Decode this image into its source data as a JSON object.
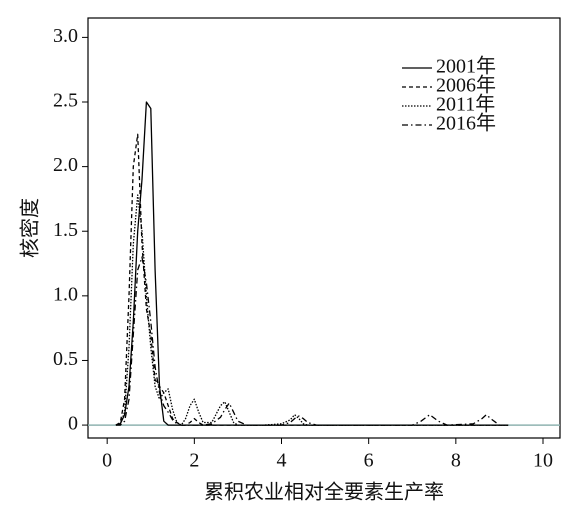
{
  "chart_data": {
    "type": "line",
    "x_label": "累积农业相对全要素生产率",
    "y_label": "核密度",
    "x": [
      0.2,
      0.3,
      0.4,
      0.5,
      0.6,
      0.7,
      0.8,
      0.9,
      1.0,
      1.1,
      1.2,
      1.3,
      1.4,
      1.5,
      1.6,
      1.7,
      1.8,
      1.9,
      2.0,
      2.1,
      2.2,
      2.4,
      2.6,
      2.7,
      2.8,
      2.9,
      3.0,
      3.2,
      3.6,
      4.0,
      4.2,
      4.3,
      4.4,
      4.5,
      4.6,
      4.8,
      5.2,
      6.0,
      7.0,
      7.2,
      7.4,
      7.6,
      7.8,
      8.4,
      8.6,
      8.7,
      8.8,
      9.0,
      9.2
    ],
    "series": [
      {
        "name": "2001年",
        "color": "#000000",
        "dash": "none",
        "values": [
          0,
          0.01,
          0.08,
          0.3,
          0.8,
          1.5,
          1.9,
          2.5,
          2.45,
          1.2,
          0.3,
          0.03,
          0,
          0,
          0,
          0,
          0,
          0,
          0,
          0,
          0,
          0,
          0,
          0,
          0,
          0,
          0,
          0,
          0,
          0,
          0,
          0,
          0,
          0,
          0,
          0,
          0,
          0,
          0,
          0,
          0,
          0,
          0,
          0,
          0,
          0,
          0,
          0,
          0
        ]
      },
      {
        "name": "2006年",
        "color": "#000000",
        "dash": "4,3",
        "values": [
          0,
          0.02,
          0.2,
          1.0,
          2.0,
          2.25,
          1.4,
          0.9,
          0.7,
          0.35,
          0.3,
          0.25,
          0.15,
          0.05,
          0.02,
          0,
          0,
          0.02,
          0.05,
          0.02,
          0,
          0,
          0,
          0,
          0,
          0,
          0,
          0,
          0,
          0,
          0,
          0,
          0,
          0,
          0,
          0,
          0,
          0,
          0,
          0,
          0,
          0,
          0,
          0,
          0,
          0,
          0,
          0,
          0
        ]
      },
      {
        "name": "2011年",
        "color": "#000000",
        "dash": "1.5,1.5",
        "values": [
          0,
          0.01,
          0.1,
          0.6,
          1.4,
          1.78,
          1.5,
          1.0,
          0.6,
          0.3,
          0.2,
          0.25,
          0.28,
          0.12,
          0.02,
          0,
          0.05,
          0.15,
          0.2,
          0.1,
          0.02,
          0.02,
          0.15,
          0.18,
          0.1,
          0.02,
          0,
          0,
          0,
          0.01,
          0.04,
          0.08,
          0.05,
          0.01,
          0,
          0,
          0,
          0,
          0,
          0,
          0,
          0,
          0,
          0,
          0,
          0,
          0,
          0,
          0
        ]
      },
      {
        "name": "2016年",
        "color": "#000000",
        "dash": "6,3,1.5,3",
        "values": [
          0,
          0,
          0.03,
          0.2,
          0.7,
          1.2,
          1.3,
          1.1,
          0.8,
          0.45,
          0.25,
          0.15,
          0.1,
          0.04,
          0.01,
          0,
          0,
          0,
          0,
          0,
          0,
          0.01,
          0.06,
          0.12,
          0.17,
          0.1,
          0.03,
          0,
          0,
          0,
          0.02,
          0.05,
          0.07,
          0.05,
          0.02,
          0,
          0,
          0,
          0,
          0.03,
          0.08,
          0.03,
          0,
          0.01,
          0.05,
          0.08,
          0.05,
          0,
          0
        ]
      }
    ],
    "xlim": [
      -0.44,
      10.39
    ],
    "ylim": [
      -0.1,
      3.15
    ],
    "xticks": [
      0,
      2,
      4,
      6,
      8,
      10
    ],
    "yticks": [
      0,
      0.5,
      {
        "value": 1,
        "label": "1.0"
      },
      1.5,
      {
        "value": 2,
        "label": "2.0"
      },
      2.5,
      {
        "value": 3,
        "label": "3.0"
      }
    ],
    "baseline_color": "#8fb3b0",
    "legend": "upper right"
  }
}
